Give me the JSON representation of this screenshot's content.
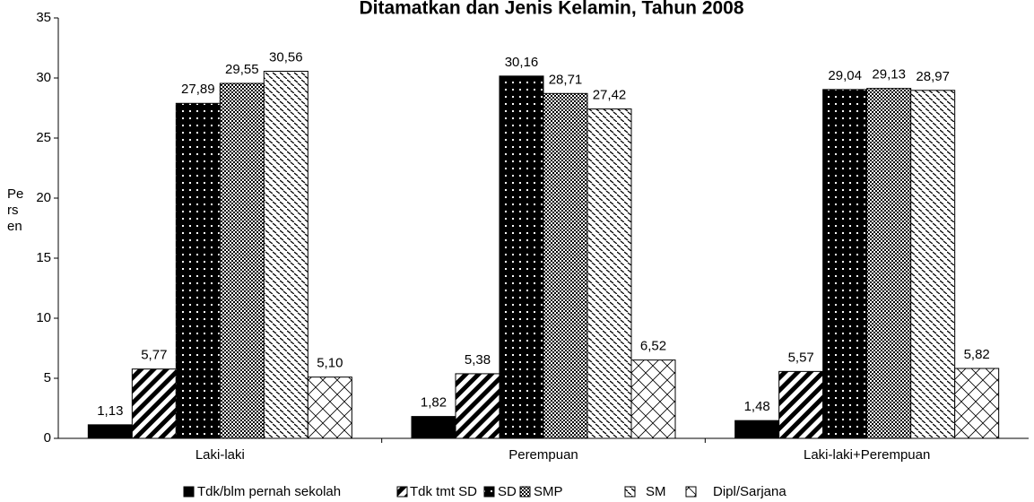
{
  "chart_data": {
    "type": "bar",
    "title": "Ditamatkan dan Jenis Kelamin, Tahun 2008",
    "y_label": "Persen",
    "categories": [
      "Laki-laki",
      "Perempuan",
      "Laki-laki+Perempuan"
    ],
    "series": [
      {
        "name": "Tdk/blm pernah sekolah",
        "color": "#000000",
        "pattern": "solid",
        "values": [
          1.13,
          1.82,
          1.48
        ],
        "value_labels": [
          "1,13",
          "1,82",
          "1,48"
        ]
      },
      {
        "name": "Tdk tmt SD",
        "color": "#000000",
        "pattern": "diagonal",
        "values": [
          5.77,
          5.38,
          5.57
        ],
        "value_labels": [
          "5,77",
          "5,38",
          "5,57"
        ]
      },
      {
        "name": "SD",
        "color": "#000000",
        "pattern": "dots",
        "values": [
          27.89,
          30.16,
          29.04
        ],
        "value_labels": [
          "27,89",
          "30,16",
          "29,04"
        ]
      },
      {
        "name": "SMP",
        "color": "#000000",
        "pattern": "checker",
        "values": [
          29.55,
          28.71,
          29.13
        ],
        "value_labels": [
          "29,55",
          "28,71",
          "29,13"
        ]
      },
      {
        "name": "SM",
        "color": "#000000",
        "pattern": "dashes",
        "values": [
          30.56,
          27.42,
          28.97
        ],
        "value_labels": [
          "30,56",
          "27,42",
          "28,97"
        ]
      },
      {
        "name": "Dipl/Sarjana",
        "color": "#000000",
        "pattern": "crosshatch",
        "values": [
          5.1,
          6.52,
          5.82
        ],
        "value_labels": [
          "5,10",
          "6,52",
          "5,82"
        ]
      }
    ],
    "ylim": [
      0,
      35
    ],
    "yticks": [
      0,
      5,
      10,
      15,
      20,
      25,
      30,
      35
    ],
    "grid": false,
    "legend": "bottom"
  }
}
